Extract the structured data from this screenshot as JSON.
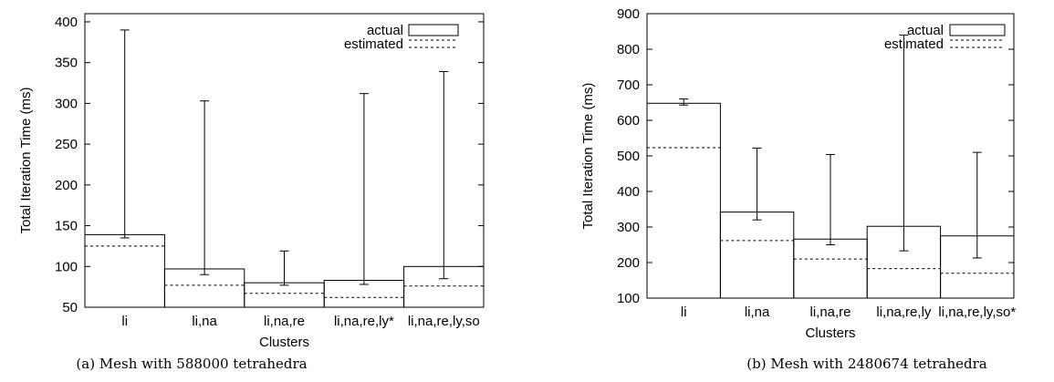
{
  "chart_data": [
    {
      "type": "bar",
      "caption": "(a) Mesh with 588000 tetrahedra",
      "xlabel": "Clusters",
      "ylabel": "Total Iteration Time (ms)",
      "ylim": [
        50,
        410
      ],
      "yticks": [
        50,
        100,
        150,
        200,
        250,
        300,
        350,
        400
      ],
      "categories": [
        "li",
        "li,na",
        "li,na,re",
        "li,na,re,ly*",
        "li,na,re,ly,so"
      ],
      "series": [
        {
          "name": "actual",
          "style": "solid-box",
          "values": [
            139,
            97,
            80,
            83,
            100
          ],
          "error_low": [
            135,
            90,
            77,
            78,
            85
          ],
          "error_high": [
            390,
            303,
            119,
            312,
            339
          ]
        },
        {
          "name": "estimated",
          "style": "dotted-line",
          "values": [
            125,
            77,
            67,
            62,
            76
          ]
        }
      ],
      "legend": "top-right",
      "grid": false
    },
    {
      "type": "bar",
      "caption": "(b) Mesh with 2480674 tetrahedra",
      "xlabel": "Clusters",
      "ylabel": "Total Iteration Time (ms)",
      "ylim": [
        100,
        900
      ],
      "yticks": [
        100,
        200,
        300,
        400,
        500,
        600,
        700,
        800,
        900
      ],
      "categories": [
        "li",
        "li,na",
        "li,na,re",
        "li,na,re,ly",
        "li,na,re,ly,so*"
      ],
      "series": [
        {
          "name": "actual",
          "style": "solid-box",
          "values": [
            648,
            342,
            266,
            302,
            275
          ],
          "error_low": [
            643,
            320,
            250,
            233,
            213
          ],
          "error_high": [
            660,
            522,
            504,
            840,
            510
          ]
        },
        {
          "name": "estimated",
          "style": "dotted-line",
          "values": [
            523,
            262,
            210,
            183,
            170
          ]
        }
      ],
      "legend": "top-right",
      "grid": false
    }
  ]
}
